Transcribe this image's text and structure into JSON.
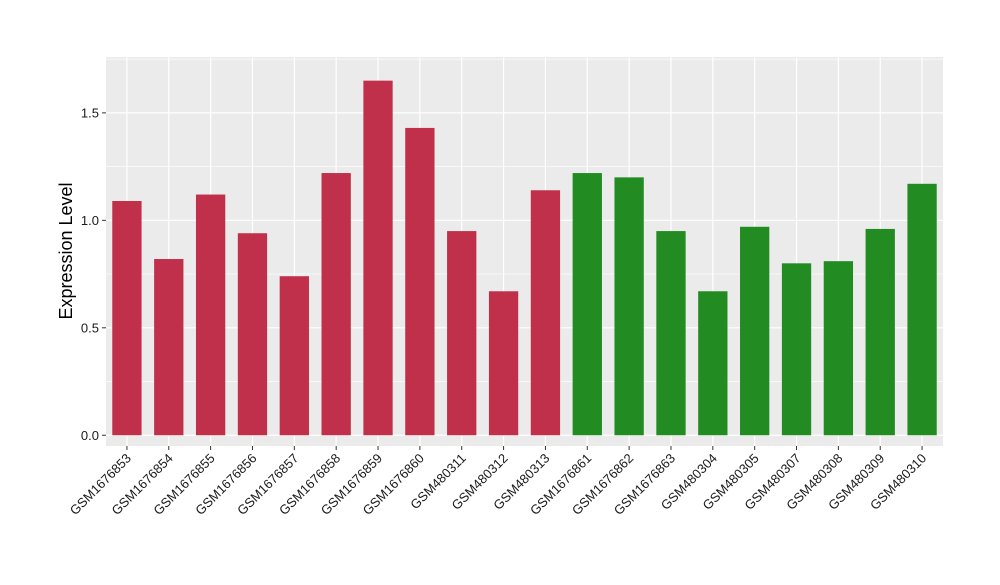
{
  "chart_data": {
    "type": "bar",
    "title": "",
    "xlabel": "",
    "ylabel": "Expression Level",
    "ylim": [
      -0.05,
      1.76
    ],
    "yticks": [
      0.0,
      0.5,
      1.0,
      1.5
    ],
    "ytick_labels": [
      "0.0",
      "0.5",
      "1.0",
      "1.5"
    ],
    "grid": true,
    "legend": "none",
    "categories": [
      "GSM1676853",
      "GSM1676854",
      "GSM1676855",
      "GSM1676856",
      "GSM1676857",
      "GSM1676858",
      "GSM1676859",
      "GSM1676860",
      "GSM480311",
      "GSM480312",
      "GSM480313",
      "GSM1676861",
      "GSM1676862",
      "GSM1676863",
      "GSM480304",
      "GSM480305",
      "GSM480307",
      "GSM480308",
      "GSM480309",
      "GSM480310"
    ],
    "values": [
      1.09,
      0.82,
      1.12,
      0.94,
      0.74,
      1.22,
      1.65,
      1.43,
      0.95,
      0.67,
      1.14,
      1.22,
      1.2,
      0.95,
      0.67,
      0.97,
      0.8,
      0.81,
      0.96,
      1.17
    ],
    "bar_colors": [
      "#c0304a",
      "#c0304a",
      "#c0304a",
      "#c0304a",
      "#c0304a",
      "#c0304a",
      "#c0304a",
      "#c0304a",
      "#c0304a",
      "#c0304a",
      "#c0304a",
      "#228b22",
      "#228b22",
      "#228b22",
      "#228b22",
      "#228b22",
      "#228b22",
      "#228b22",
      "#228b22",
      "#228b22"
    ],
    "panel_background": "#ebebeb",
    "grid_color": "#ffffff"
  }
}
